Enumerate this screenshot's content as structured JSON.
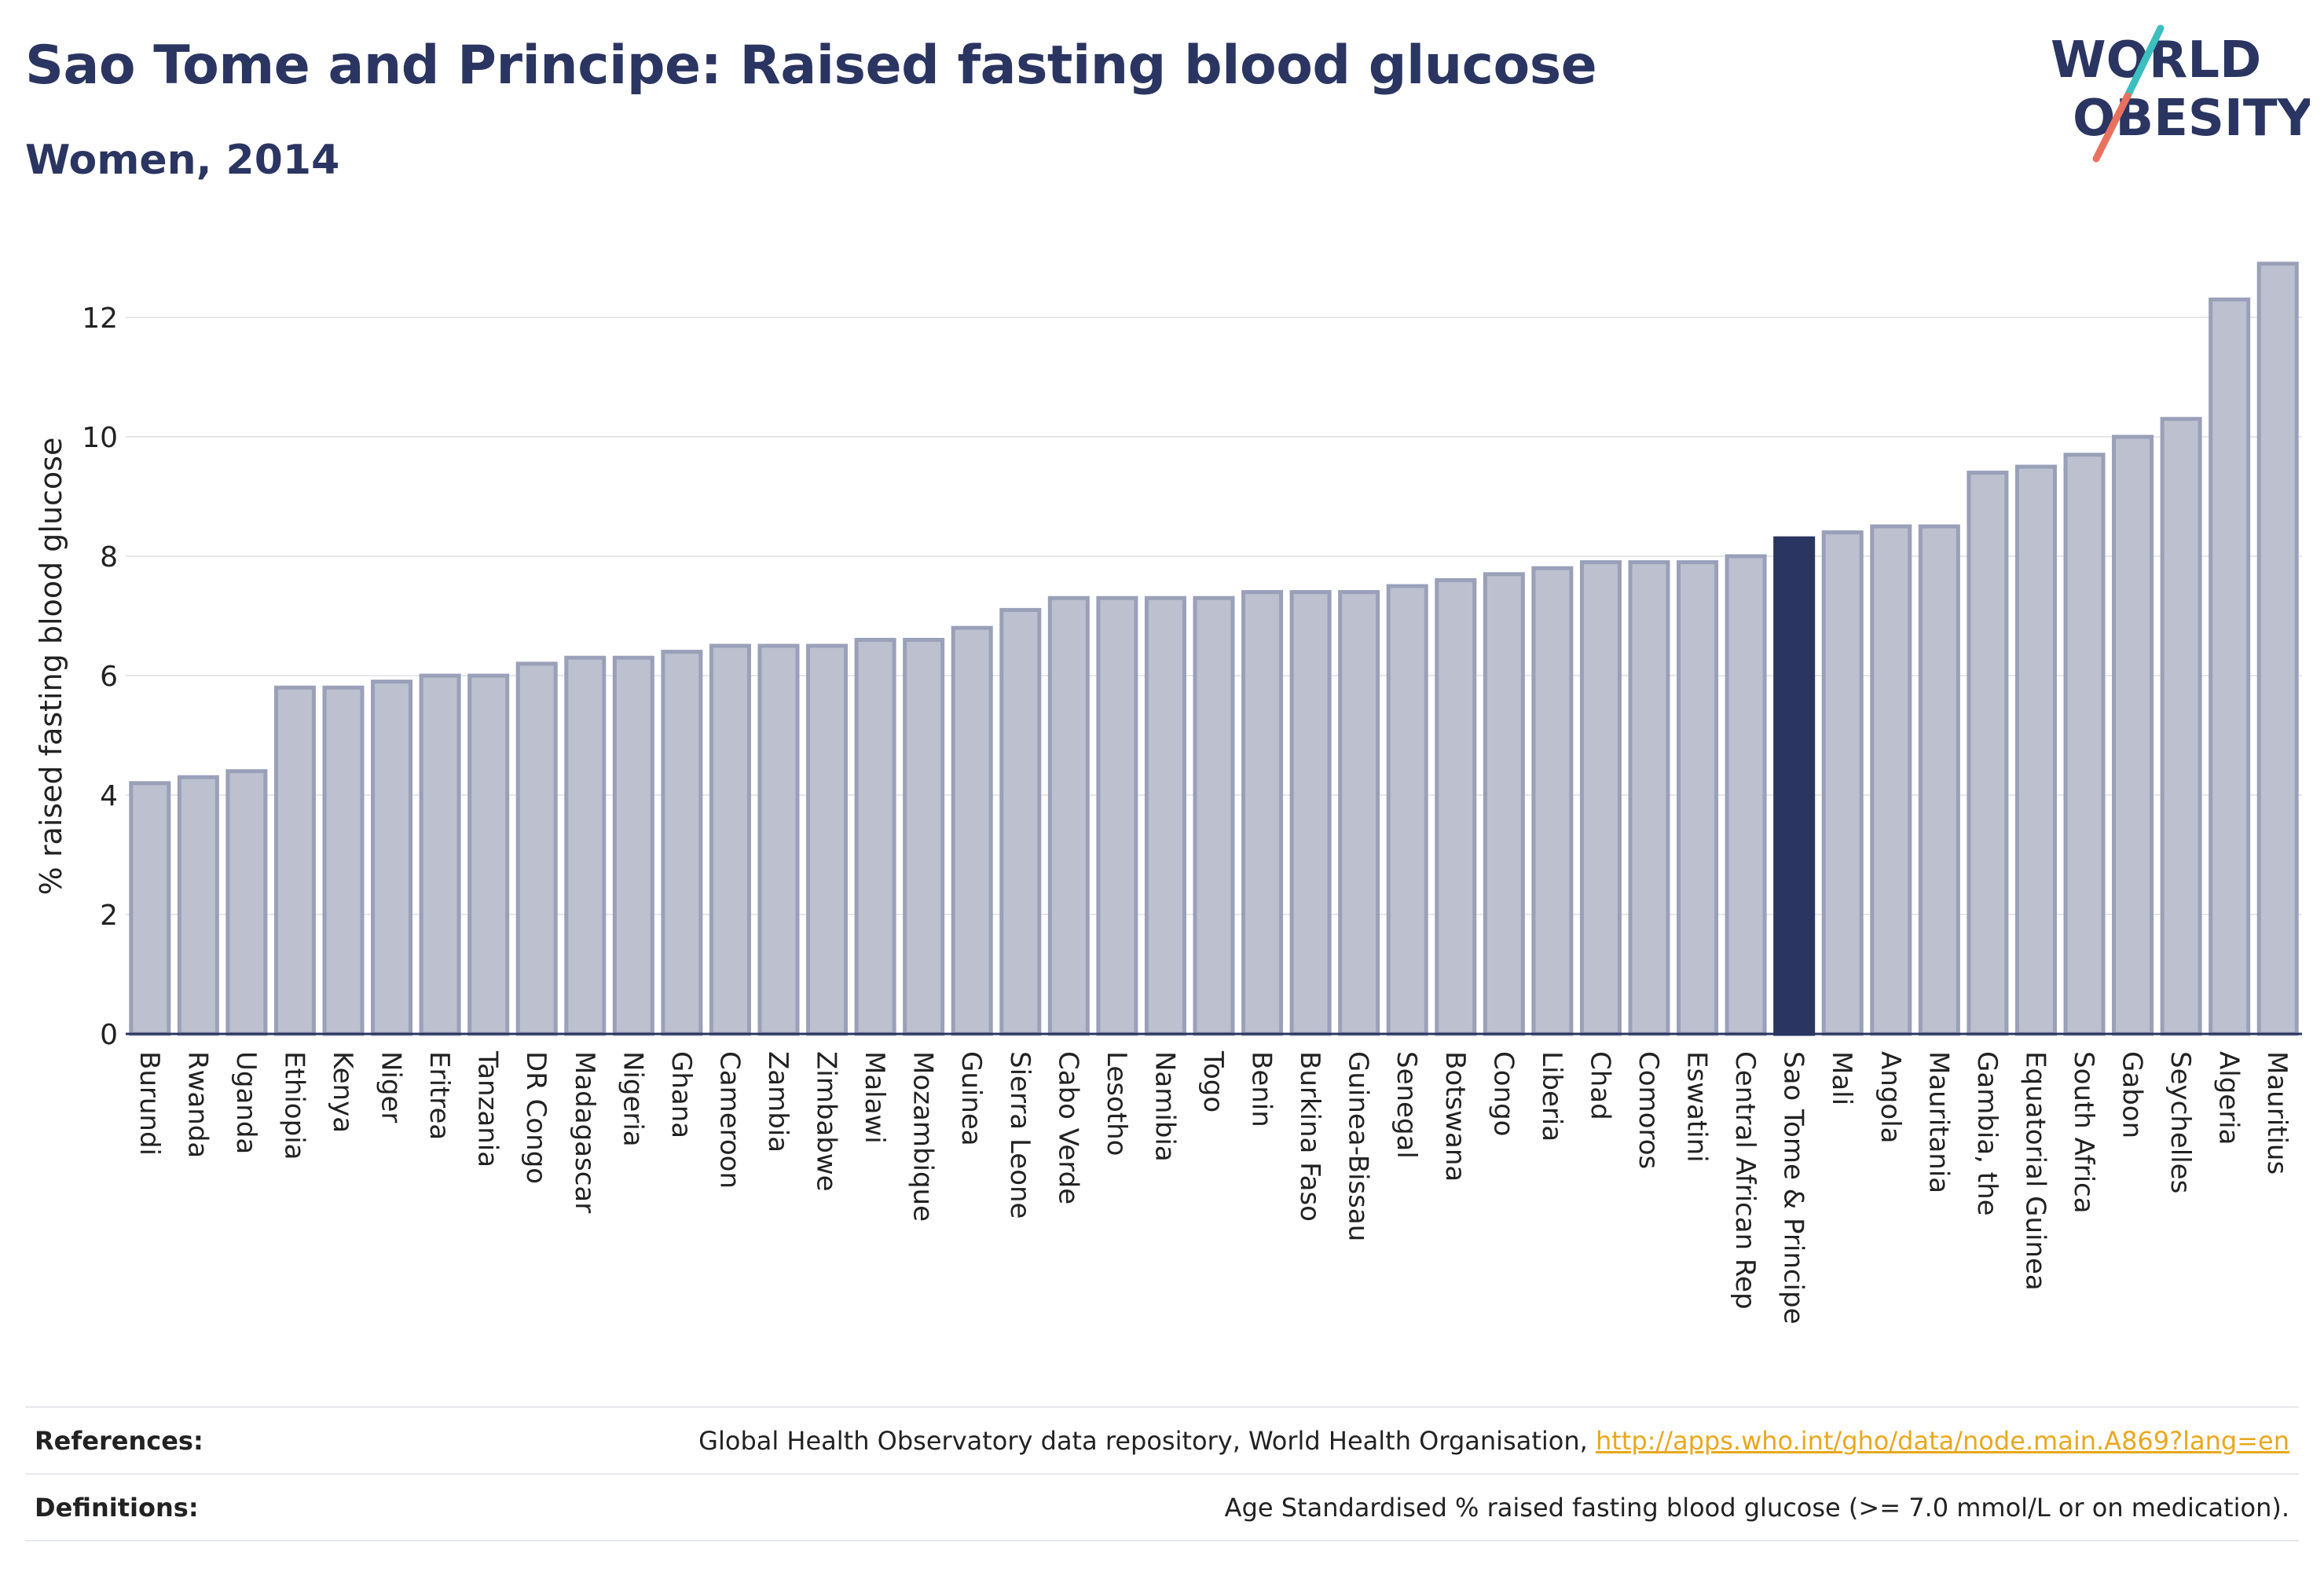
{
  "header": {
    "title": "Sao Tome and Principe: Raised fasting blood glucose",
    "subtitle": "Women, 2014"
  },
  "logo": {
    "line1": "WORLD",
    "line2": "OBESITY"
  },
  "colors": {
    "bar": "#bcc0cf",
    "bar_border": "#9aa0b8",
    "highlight": "#2b3561",
    "grid": "#e5e7ec",
    "axis": "#2b3561",
    "logo_teal": "#3cbfbf",
    "logo_coral": "#e8715f",
    "link": "#e8a81e"
  },
  "chart_data": {
    "type": "bar",
    "ylabel": "% raised fasting blood glucose",
    "ylim": [
      0,
      13
    ],
    "yticks": [
      0,
      2,
      4,
      6,
      8,
      10,
      12
    ],
    "grid": true,
    "highlight": "Sao Tome & Principe",
    "categories": [
      "Burundi",
      "Rwanda",
      "Uganda",
      "Ethiopia",
      "Kenya",
      "Niger",
      "Eritrea",
      "Tanzania",
      "DR Congo",
      "Madagascar",
      "Nigeria",
      "Ghana",
      "Cameroon",
      "Zambia",
      "Zimbabwe",
      "Malawi",
      "Mozambique",
      "Guinea",
      "Sierra Leone",
      "Cabo Verde",
      "Lesotho",
      "Namibia",
      "Togo",
      "Benin",
      "Burkina Faso",
      "Guinea-Bissau",
      "Senegal",
      "Botswana",
      "Congo",
      "Liberia",
      "Chad",
      "Comoros",
      "Eswatini",
      "Central African Rep",
      "Sao Tome & Principe",
      "Mali",
      "Angola",
      "Mauritania",
      "Gambia, the",
      "Equatorial Guinea",
      "South Africa",
      "Gabon",
      "Seychelles",
      "Algeria",
      "Mauritius"
    ],
    "values": [
      4.2,
      4.3,
      4.4,
      5.8,
      5.8,
      5.9,
      6.0,
      6.0,
      6.2,
      6.3,
      6.3,
      6.4,
      6.5,
      6.5,
      6.5,
      6.6,
      6.6,
      6.8,
      7.1,
      7.3,
      7.3,
      7.3,
      7.3,
      7.4,
      7.4,
      7.4,
      7.5,
      7.6,
      7.7,
      7.8,
      7.9,
      7.9,
      7.9,
      8.0,
      8.3,
      8.4,
      8.5,
      8.5,
      9.4,
      9.5,
      9.7,
      10.0,
      10.3,
      12.3,
      12.9
    ]
  },
  "footer": {
    "references_label": "References:",
    "references_text": "Global Health Observatory data repository, World Health Organisation, ",
    "references_link": "http://apps.who.int/gho/data/node.main.A869?lang=en",
    "definitions_label": "Definitions:",
    "definitions_text": "Age Standardised % raised fasting blood glucose (>= 7.0 mmol/L or on medication)."
  }
}
